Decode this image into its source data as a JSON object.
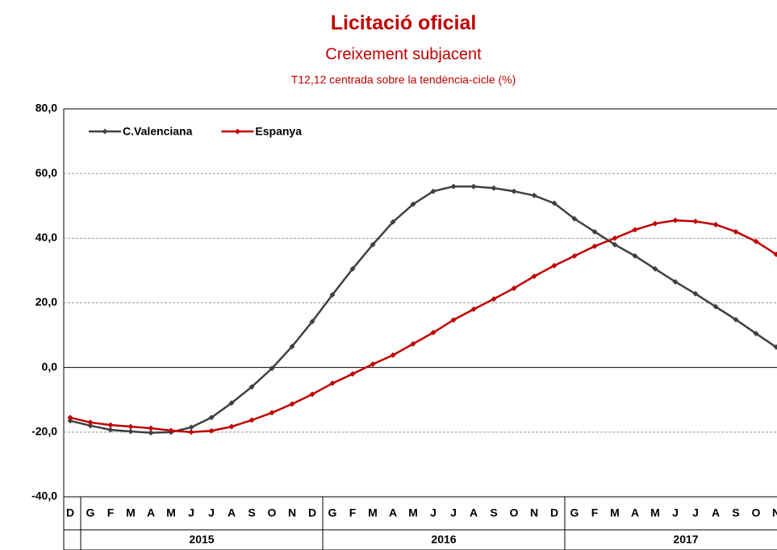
{
  "chart_data": {
    "type": "line",
    "title": "Licitació oficial",
    "subtitle": "Creixement subjacent",
    "note": "T12,12 centrada sobre la tendència-cicle (%)",
    "categories": [
      "D",
      "G",
      "F",
      "M",
      "A",
      "M",
      "J",
      "J",
      "A",
      "S",
      "O",
      "N",
      "D",
      "G",
      "F",
      "M",
      "A",
      "M",
      "J",
      "J",
      "A",
      "S",
      "O",
      "N",
      "D",
      "G",
      "F",
      "M",
      "A",
      "M",
      "J",
      "J",
      "A",
      "S",
      "O",
      "N"
    ],
    "years": [
      "2015",
      "2016",
      "2017"
    ],
    "series": [
      {
        "name": "C.Valenciana",
        "color": "#404040",
        "values": [
          -16.5,
          -18,
          -19.3,
          -19.8,
          -20.2,
          -20,
          -18.5,
          -15.5,
          -11,
          -6,
          -0.3,
          6.5,
          14.2,
          22.5,
          30.5,
          38,
          45,
          50.5,
          54.5,
          56,
          56,
          55.5,
          54.5,
          53.2,
          50.8,
          46,
          42,
          38,
          34.5,
          30.5,
          26.5,
          22.8,
          18.8,
          14.8,
          10.5,
          6.3
        ]
      },
      {
        "name": "Espanya",
        "color": "#c00000",
        "values": [
          -15.5,
          -17,
          -17.8,
          -18.3,
          -18.8,
          -19.5,
          -20,
          -19.6,
          -18.3,
          -16.3,
          -14,
          -11.3,
          -8.3,
          -4.9,
          -2,
          1,
          3.8,
          7.3,
          10.8,
          14.7,
          18,
          21.2,
          24.5,
          28.2,
          31.5,
          34.5,
          37.5,
          40,
          42.6,
          44.5,
          45.5,
          45.2,
          44.2,
          42,
          39,
          35
        ]
      }
    ],
    "ylim": [
      -40,
      80
    ],
    "yticks": [
      {
        "value": -40,
        "label": "-40,0"
      },
      {
        "value": -20,
        "label": "-20,0"
      },
      {
        "value": 0,
        "label": "0,0"
      },
      {
        "value": 20,
        "label": "20,0"
      },
      {
        "value": 40,
        "label": "40,0"
      },
      {
        "value": 60,
        "label": "60,0"
      },
      {
        "value": 80,
        "label": "80,0"
      }
    ],
    "grid": true,
    "legend": "top-left"
  }
}
